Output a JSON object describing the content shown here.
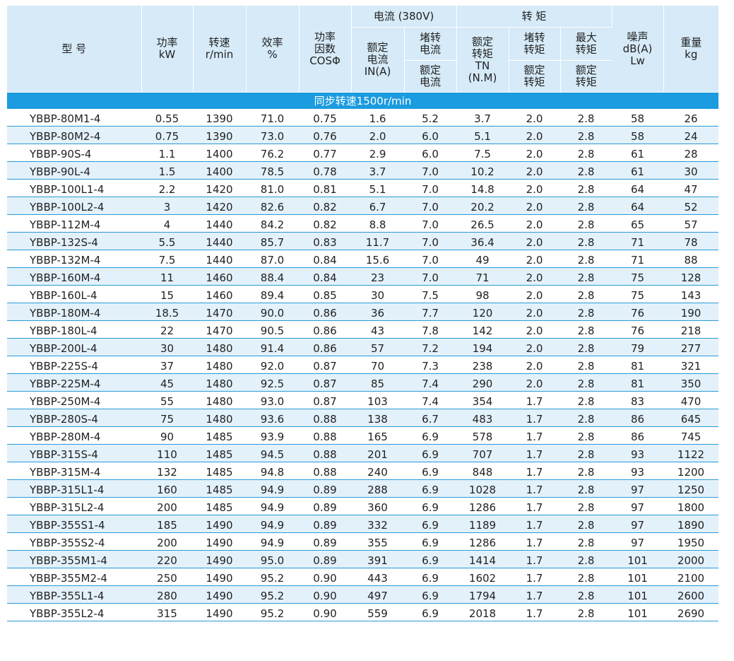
{
  "header": {
    "model": "型 号",
    "power": [
      "功率",
      "kW"
    ],
    "speed": [
      "转速",
      "r/min"
    ],
    "efficiency": [
      "效率",
      "%"
    ],
    "pf": [
      "功率",
      "因数",
      "COSΦ"
    ],
    "current_group": "电流 (380V)",
    "rated_current": [
      "额定",
      "电流",
      "IN(A)"
    ],
    "locked_current_top": [
      "堵转",
      "电流"
    ],
    "locked_current_bottom": [
      "额定",
      "电流"
    ],
    "torque_group": "转 矩",
    "rated_torque": [
      "额定",
      "转矩",
      "TN",
      "(N.M)"
    ],
    "locked_torque_top": [
      "堵转",
      "转矩"
    ],
    "locked_torque_bottom": [
      "额定",
      "转矩"
    ],
    "max_torque_top": [
      "最大",
      "转矩"
    ],
    "max_torque_bottom": [
      "额定",
      "转矩"
    ],
    "noise": [
      "噪声",
      "dB(A)",
      "Lw"
    ],
    "weight": [
      "重量",
      "kg"
    ]
  },
  "band": "同步转速1500r/min",
  "rows": [
    [
      "YBBP-80M1-4",
      "0.55",
      "1390",
      "71.0",
      "0.75",
      "1.6",
      "5.2",
      "3.7",
      "2.0",
      "2.8",
      "58",
      "26"
    ],
    [
      "YBBP-80M2-4",
      "0.75",
      "1390",
      "73.0",
      "0.76",
      "2.0",
      "6.0",
      "5.1",
      "2.0",
      "2.8",
      "58",
      "24"
    ],
    [
      "YBBP-90S-4",
      "1.1",
      "1400",
      "76.2",
      "0.77",
      "2.9",
      "6.0",
      "7.5",
      "2.0",
      "2.8",
      "61",
      "28"
    ],
    [
      "YBBP-90L-4",
      "1.5",
      "1400",
      "78.5",
      "0.78",
      "3.7",
      "7.0",
      "10.2",
      "2.0",
      "2.8",
      "61",
      "30"
    ],
    [
      "YBBP-100L1-4",
      "2.2",
      "1420",
      "81.0",
      "0.81",
      "5.1",
      "7.0",
      "14.8",
      "2.0",
      "2.8",
      "64",
      "47"
    ],
    [
      "YBBP-100L2-4",
      "3",
      "1420",
      "82.6",
      "0.82",
      "6.7",
      "7.0",
      "20.2",
      "2.0",
      "2.8",
      "64",
      "52"
    ],
    [
      "YBBP-112M-4",
      "4",
      "1440",
      "84.2",
      "0.82",
      "8.8",
      "7.0",
      "26.5",
      "2.0",
      "2.8",
      "65",
      "57"
    ],
    [
      "YBBP-132S-4",
      "5.5",
      "1440",
      "85.7",
      "0.83",
      "11.7",
      "7.0",
      "36.4",
      "2.0",
      "2.8",
      "71",
      "78"
    ],
    [
      "YBBP-132M-4",
      "7.5",
      "1440",
      "87.0",
      "0.84",
      "15.6",
      "7.0",
      "49",
      "2.0",
      "2.8",
      "71",
      "88"
    ],
    [
      "YBBP-160M-4",
      "11",
      "1460",
      "88.4",
      "0.84",
      "23",
      "7.0",
      "71",
      "2.0",
      "2.8",
      "75",
      "128"
    ],
    [
      "YBBP-160L-4",
      "15",
      "1460",
      "89.4",
      "0.85",
      "30",
      "7.5",
      "98",
      "2.0",
      "2.8",
      "75",
      "143"
    ],
    [
      "YBBP-180M-4",
      "18.5",
      "1470",
      "90.0",
      "0.86",
      "36",
      "7.7",
      "120",
      "2.0",
      "2.8",
      "76",
      "190"
    ],
    [
      "YBBP-180L-4",
      "22",
      "1470",
      "90.5",
      "0.86",
      "43",
      "7.8",
      "142",
      "2.0",
      "2.8",
      "76",
      "218"
    ],
    [
      "YBBP-200L-4",
      "30",
      "1480",
      "91.4",
      "0.86",
      "57",
      "7.2",
      "194",
      "2.0",
      "2.8",
      "79",
      "277"
    ],
    [
      "YBBP-225S-4",
      "37",
      "1480",
      "92.0",
      "0.87",
      "70",
      "7.3",
      "238",
      "2.0",
      "2.8",
      "81",
      "321"
    ],
    [
      "YBBP-225M-4",
      "45",
      "1480",
      "92.5",
      "0.87",
      "85",
      "7.4",
      "290",
      "2.0",
      "2.8",
      "81",
      "350"
    ],
    [
      "YBBP-250M-4",
      "55",
      "1480",
      "93.0",
      "0.87",
      "103",
      "7.4",
      "354",
      "1.7",
      "2.8",
      "83",
      "470"
    ],
    [
      "YBBP-280S-4",
      "75",
      "1480",
      "93.6",
      "0.88",
      "138",
      "6.7",
      "483",
      "1.7",
      "2.8",
      "86",
      "645"
    ],
    [
      "YBBP-280M-4",
      "90",
      "1485",
      "93.9",
      "0.88",
      "165",
      "6.9",
      "578",
      "1.7",
      "2.8",
      "86",
      "745"
    ],
    [
      "YBBP-315S-4",
      "110",
      "1485",
      "94.5",
      "0.88",
      "201",
      "6.9",
      "707",
      "1.7",
      "2.8",
      "93",
      "1122"
    ],
    [
      "YBBP-315M-4",
      "132",
      "1485",
      "94.8",
      "0.88",
      "240",
      "6.9",
      "848",
      "1.7",
      "2.8",
      "93",
      "1200"
    ],
    [
      "YBBP-315L1-4",
      "160",
      "1485",
      "94.9",
      "0.89",
      "288",
      "6.9",
      "1028",
      "1.7",
      "2.8",
      "97",
      "1250"
    ],
    [
      "YBBP-315L2-4",
      "200",
      "1485",
      "94.9",
      "0.89",
      "360",
      "6.9",
      "1286",
      "1.7",
      "2.8",
      "97",
      "1800"
    ],
    [
      "YBBP-355S1-4",
      "185",
      "1490",
      "94.9",
      "0.89",
      "332",
      "6.9",
      "1189",
      "1.7",
      "2.8",
      "97",
      "1890"
    ],
    [
      "YBBP-355S2-4",
      "200",
      "1490",
      "94.9",
      "0.89",
      "355",
      "6.9",
      "1286",
      "1.7",
      "2.8",
      "97",
      "1950"
    ],
    [
      "YBBP-355M1-4",
      "220",
      "1490",
      "95.0",
      "0.89",
      "391",
      "6.9",
      "1414",
      "1.7",
      "2.8",
      "101",
      "2000"
    ],
    [
      "YBBP-355M2-4",
      "250",
      "1490",
      "95.2",
      "0.90",
      "443",
      "6.9",
      "1602",
      "1.7",
      "2.8",
      "101",
      "2100"
    ],
    [
      "YBBP-355L1-4",
      "280",
      "1490",
      "95.2",
      "0.90",
      "497",
      "6.9",
      "1794",
      "1.7",
      "2.8",
      "101",
      "2600"
    ],
    [
      "YBBP-355L2-4",
      "315",
      "1490",
      "95.2",
      "0.90",
      "559",
      "6.9",
      "2018",
      "1.7",
      "2.8",
      "101",
      "2690"
    ]
  ]
}
